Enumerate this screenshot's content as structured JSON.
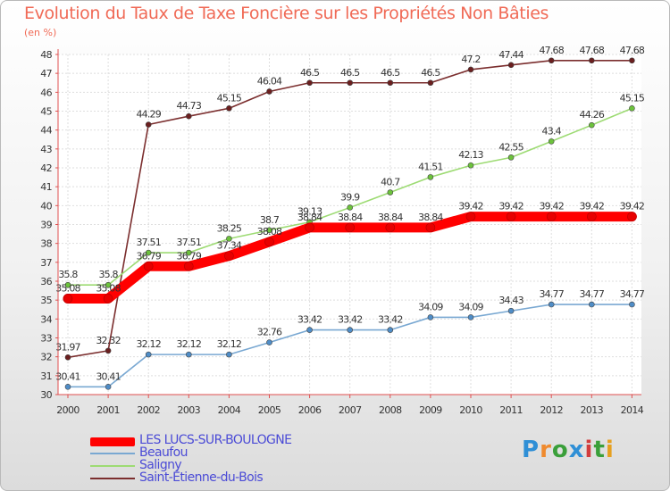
{
  "header": {
    "title": "Evolution du Taux de Taxe Foncière sur les Propriétés Non Bâties",
    "subtitle": "(en %)"
  },
  "logo": {
    "text": "Proxiti",
    "colors": [
      "#2f8fd6",
      "#ef8a2e",
      "#3a9f3a",
      "#2f8fd6",
      "#d23c3c",
      "#3a9f3a",
      "#e6a020"
    ]
  },
  "chart_data": {
    "type": "line",
    "title": "Evolution du Taux de Taxe Foncière sur les Propriétés Non Bâties",
    "xlabel": "",
    "ylabel": "(en %)",
    "ylim": [
      30,
      48
    ],
    "yticks": [
      "30",
      "31",
      "32",
      "33",
      "34",
      "35",
      "36",
      "37",
      "38",
      "39",
      "40",
      "41",
      "42",
      "43",
      "44",
      "45",
      "46",
      "47",
      "48"
    ],
    "x": [
      "2000",
      "2001",
      "2002",
      "2003",
      "2004",
      "2005",
      "2006",
      "2007",
      "2008",
      "2009",
      "2010",
      "2011",
      "2012",
      "2013",
      "2014"
    ],
    "grid": true,
    "legend_position": "bottom-left",
    "series": [
      {
        "name": "Saint-Étienne-du-Bois",
        "color": "#7b2e2e",
        "marker_color": "#6b1f1f",
        "values": [
          31.97,
          32.32,
          44.29,
          44.73,
          45.15,
          46.04,
          46.5,
          46.5,
          46.5,
          46.5,
          47.2,
          47.44,
          47.68,
          47.68,
          47.68
        ],
        "labels": [
          "31.97",
          "32.32",
          "44.29",
          "44.73",
          "45.15",
          "46.04",
          "46.5",
          "46.5",
          "46.5",
          "46.5",
          "47.2",
          "47.44",
          "47.68",
          "47.68",
          "47.68"
        ]
      },
      {
        "name": "Saligny",
        "color": "#9ddb73",
        "marker_color": "#6cc23c",
        "values": [
          35.8,
          35.8,
          37.51,
          37.51,
          38.25,
          38.7,
          39.13,
          39.9,
          40.7,
          41.51,
          42.13,
          42.55,
          43.4,
          44.26,
          45.15
        ],
        "labels": [
          "35.8",
          "35.8",
          "37.51",
          "37.51",
          "38.25",
          "38.7",
          "39.13",
          "39.9",
          "40.7",
          "41.51",
          "42.13",
          "42.55",
          "43.4",
          "44.26",
          "45.15"
        ]
      },
      {
        "name": "Beaufou",
        "color": "#79a8d2",
        "marker_color": "#4f8dc7",
        "values": [
          30.41,
          30.41,
          32.12,
          32.12,
          32.12,
          32.76,
          33.42,
          33.42,
          33.42,
          34.09,
          34.09,
          34.43,
          34.77,
          34.77,
          34.77
        ],
        "labels": [
          "30.41",
          "30.41",
          "32.12",
          "32.12",
          "32.12",
          "32.76",
          "33.42",
          "33.42",
          "33.42",
          "34.09",
          "34.09",
          "34.43",
          "34.77",
          "34.77",
          "34.77"
        ]
      },
      {
        "name": "LES LUCS-SUR-BOULOGNE",
        "color": "#ff0000",
        "marker_color": "#e80000",
        "thick": true,
        "values": [
          35.08,
          35.08,
          36.79,
          36.79,
          37.34,
          38.08,
          38.84,
          38.84,
          38.84,
          38.84,
          39.42,
          39.42,
          39.42,
          39.42,
          39.42
        ],
        "labels": [
          "35.08",
          "35.08",
          "36.79",
          "36.79",
          "37.34",
          "38.08",
          "38.84",
          "38.84",
          "38.84",
          "38.84",
          "39.42",
          "39.42",
          "39.42",
          "39.42",
          "39.42"
        ]
      }
    ],
    "legend": [
      "LES LUCS-SUR-BOULOGNE",
      "Beaufou",
      "Saligny",
      "Saint-Étienne-du-Bois"
    ]
  }
}
